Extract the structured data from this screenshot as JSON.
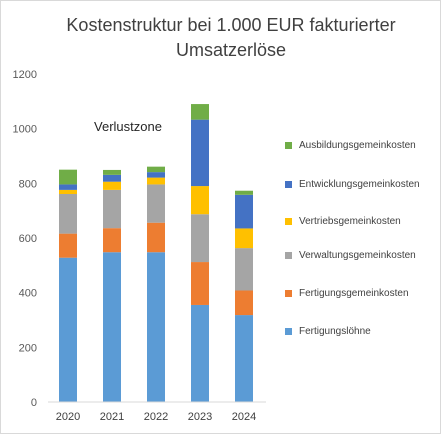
{
  "chart_data": {
    "type": "stacked-bar",
    "title": "Kostenstruktur bei 1.000 EUR fakturierter Umsatzerlöse",
    "title_lines": [
      "Kostenstruktur bei 1.000 EUR fakturierter",
      "Umsatzerlöse"
    ],
    "categories": [
      "2020",
      "2021",
      "2022",
      "2023",
      "2024"
    ],
    "ylim": [
      0,
      1200
    ],
    "yticks": [
      "0",
      "200",
      "400",
      "600",
      "800",
      "1000",
      "1200"
    ],
    "grid": false,
    "legend_position": "right",
    "series": [
      {
        "name": "Fertigungslöhne",
        "color": "#5B9BD5",
        "values": [
          528,
          548,
          548,
          355,
          318
        ]
      },
      {
        "name": "Fertigungsgemeinkosten",
        "color": "#ED7D31",
        "values": [
          88,
          88,
          108,
          157,
          90
        ]
      },
      {
        "name": "Verwaltungsgemeinkosten",
        "color": "#A5A5A5",
        "values": [
          145,
          140,
          140,
          175,
          155
        ]
      },
      {
        "name": "Vertriebsgemeinkosten",
        "color": "#FFC000",
        "values": [
          15,
          30,
          25,
          103,
          72
        ]
      },
      {
        "name": "Entwicklungsgemeinkosten",
        "color": "#4472C4",
        "values": [
          20,
          25,
          20,
          243,
          123
        ]
      },
      {
        "name": "Ausbildungsgemeinkosten",
        "color": "#70AD47",
        "values": [
          54,
          18,
          20,
          57,
          15
        ]
      }
    ],
    "annotations": [
      {
        "text": "Verlustzone",
        "y": 1010,
        "x_between": [
          "2020",
          "2022"
        ]
      }
    ]
  }
}
